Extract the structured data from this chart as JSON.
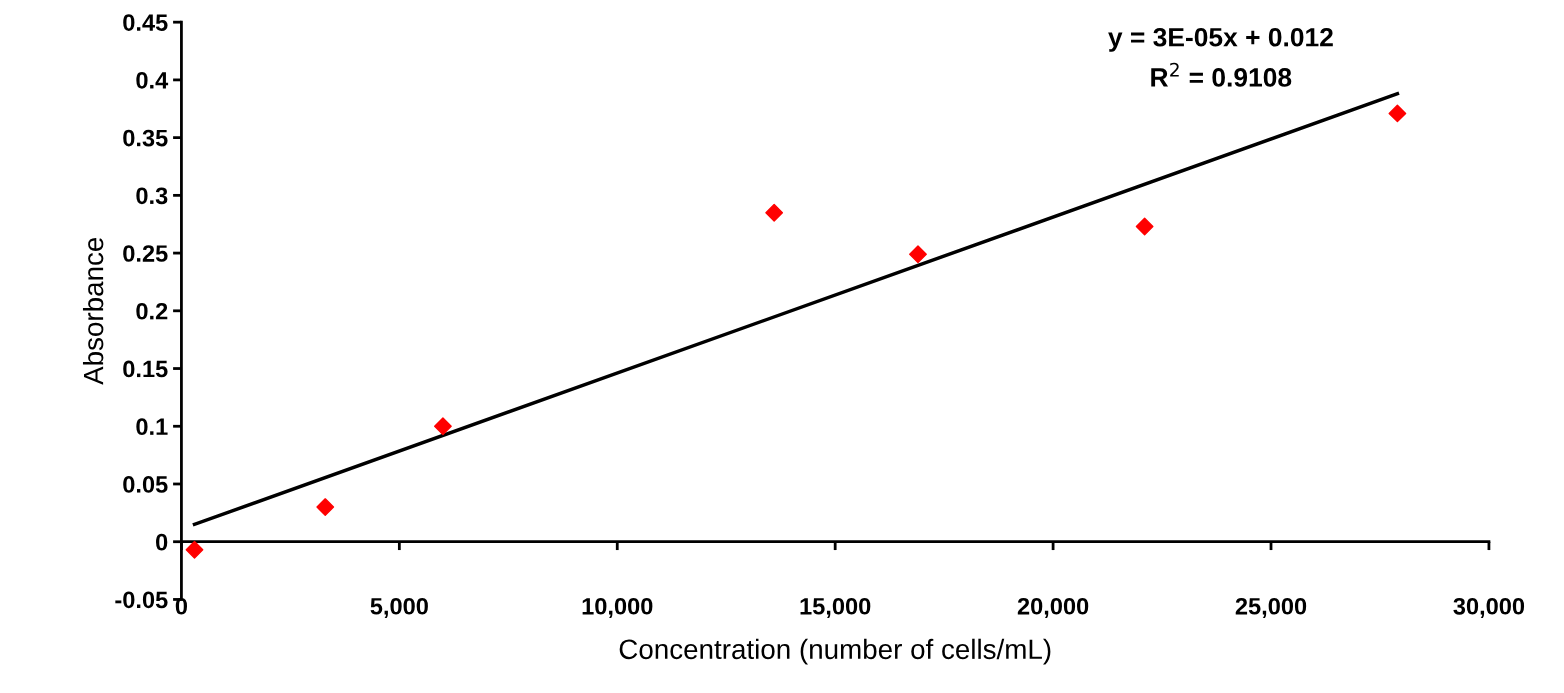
{
  "chart_data": {
    "type": "scatter",
    "xlabel": "Concentration (number of cells/mL)",
    "ylabel": "Absorbance",
    "series": [
      {
        "color": "#ff0000",
        "marker": "diamond",
        "x": [
          300,
          3300,
          6000,
          13600,
          16900,
          22100,
          27900
        ],
        "values": [
          -0.007,
          0.03,
          0.1,
          0.285,
          0.249,
          0.273,
          0.371
        ]
      },
      {
        "type": "line",
        "color": "#000000",
        "marker": "none",
        "line_style": "solid",
        "x": [
          300,
          27900
        ],
        "values": [
          0.015,
          0.388
        ]
      }
    ],
    "annotations": [
      "y = 3E-05x + 0.012",
      "R$^{2}$ = 0.9108"
    ],
    "xlim": [
      0,
      30000
    ],
    "ylim": [
      -0.05,
      0.45
    ],
    "xticks": [
      0,
      {
        "value": 5000,
        "label": "5,000"
      },
      {
        "value": 10000,
        "label": "10,000"
      },
      {
        "value": 15000,
        "label": "15,000"
      },
      {
        "value": 20000,
        "label": "20,000"
      },
      {
        "value": 25000,
        "label": "25,000"
      },
      {
        "value": 30000,
        "label": "30,000"
      }
    ],
    "yticks": [
      -0.05,
      0,
      0.05,
      0.1,
      0.15,
      0.2,
      0.25,
      0.3,
      0.35,
      0.4,
      0.45
    ],
    "grid": false,
    "legend": false
  }
}
